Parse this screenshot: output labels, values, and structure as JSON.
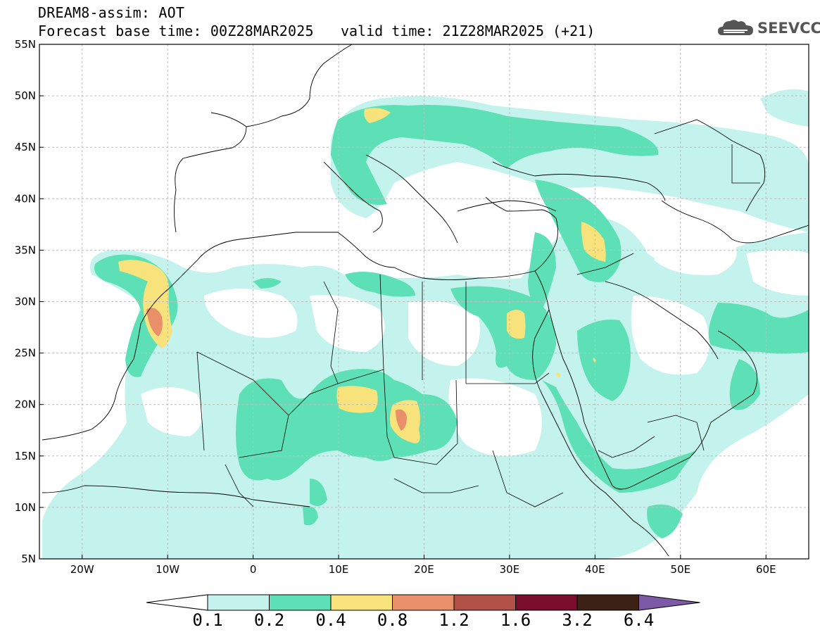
{
  "header": {
    "model_line": "DREAM8-assim: AOT",
    "base_time_line": "Forecast base time: 00Z28MAR2025",
    "valid_time_line": "valid time: 21Z28MAR2025 (+21)"
  },
  "logo": {
    "text": "SEEVCCC",
    "icon": "cloud-logo-icon"
  },
  "map": {
    "lat_labels": [
      "55N",
      "50N",
      "45N",
      "40N",
      "35N",
      "30N",
      "25N",
      "20N",
      "15N",
      "10N",
      "5N"
    ],
    "lon_labels": [
      "20W",
      "10W",
      "0",
      "10E",
      "20E",
      "30E",
      "40E",
      "50E",
      "60E"
    ],
    "lon_range": [
      -25,
      65
    ],
    "lat_range": [
      5,
      55
    ],
    "grid": true
  },
  "colorbar": {
    "labels": [
      "0.1",
      "0.2",
      "0.4",
      "0.8",
      "1.2",
      "1.6",
      "3.2",
      "6.4"
    ],
    "colors": [
      "#c4f2ec",
      "#5ee0b6",
      "#f7e27c",
      "#e9906a",
      "#b25148",
      "#7a0d2c",
      "#3b2215",
      "#7d5aa6"
    ]
  }
}
